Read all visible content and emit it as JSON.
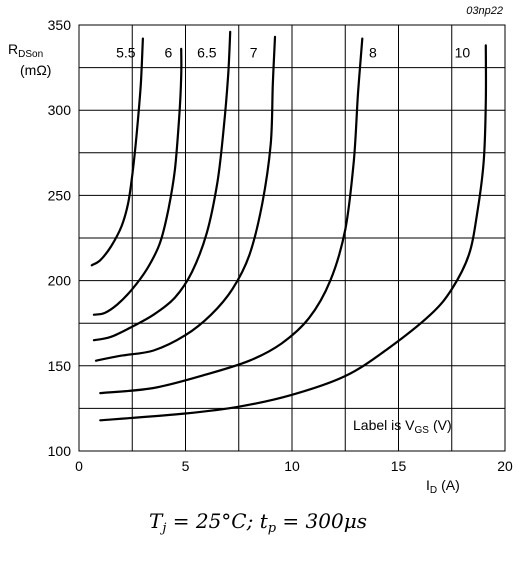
{
  "chart_data": {
    "type": "line",
    "reference": "03np22",
    "ylabel_main": "R",
    "ylabel_sub": "DSon",
    "ylabel_unit": "(mΩ)",
    "xlabel_main": "I",
    "xlabel_sub": "D",
    "xlabel_unit": "(A)",
    "xlim": [
      0,
      20
    ],
    "ylim": [
      100,
      350
    ],
    "xticks": [
      0,
      5,
      10,
      15,
      20
    ],
    "yticks": [
      100,
      150,
      200,
      250,
      300,
      350
    ],
    "grid": true,
    "note_main": "Label is V",
    "note_sub": "GS",
    "note_unit": "(V)",
    "series": [
      {
        "name": "5.5",
        "x": [
          0.6,
          1.0,
          1.5,
          2.0,
          2.3,
          2.5,
          2.7,
          2.9,
          3.0
        ],
        "y": [
          209,
          212,
          220,
          232,
          245,
          262,
          285,
          315,
          342
        ]
      },
      {
        "name": "6",
        "x": [
          0.7,
          1.2,
          1.8,
          2.5,
          3.2,
          3.8,
          4.2,
          4.5,
          4.7,
          4.8,
          4.8
        ],
        "y": [
          180,
          181,
          186,
          195,
          207,
          222,
          242,
          265,
          295,
          320,
          336
        ]
      },
      {
        "name": "6.5",
        "x": [
          0.7,
          1.5,
          2.5,
          3.5,
          4.5,
          5.3,
          6.0,
          6.5,
          6.8,
          7.0,
          7.1
        ],
        "y": [
          165,
          167,
          173,
          180,
          190,
          205,
          228,
          258,
          290,
          320,
          346
        ]
      },
      {
        "name": "7",
        "x": [
          0.8,
          2.0,
          3.5,
          5.0,
          6.2,
          7.2,
          8.0,
          8.6,
          9.0,
          9.1,
          9.2
        ],
        "y": [
          153,
          156,
          159,
          168,
          180,
          195,
          215,
          245,
          280,
          315,
          343
        ]
      },
      {
        "name": "8",
        "x": [
          1.0,
          3.5,
          6.0,
          8.0,
          9.5,
          10.8,
          11.8,
          12.5,
          12.9,
          13.1,
          13.3
        ],
        "y": [
          134,
          137,
          145,
          153,
          163,
          178,
          200,
          230,
          270,
          310,
          342
        ]
      },
      {
        "name": "10",
        "x": [
          1.0,
          5.0,
          7.5,
          10.0,
          12.5,
          14.5,
          16.5,
          17.5,
          18.3,
          18.7,
          19.0,
          19.1,
          19.1
        ],
        "y": [
          118,
          122,
          126,
          133,
          144,
          160,
          180,
          195,
          215,
          240,
          270,
          305,
          338
        ]
      }
    ],
    "label_positions": [
      {
        "text": "5.5",
        "x": 2.2,
        "y": 334
      },
      {
        "text": "6",
        "x": 4.2,
        "y": 334
      },
      {
        "text": "6.5",
        "x": 6.0,
        "y": 334
      },
      {
        "text": "7",
        "x": 8.2,
        "y": 334
      },
      {
        "text": "8",
        "x": 13.8,
        "y": 334
      },
      {
        "text": "10",
        "x": 18.0,
        "y": 334
      }
    ]
  },
  "caption": {
    "tj": "T",
    "tj_sub": "j",
    "tj_val": " = 25°C; ",
    "tp": "t",
    "tp_sub": "p",
    "tp_val": " = 300μs"
  }
}
